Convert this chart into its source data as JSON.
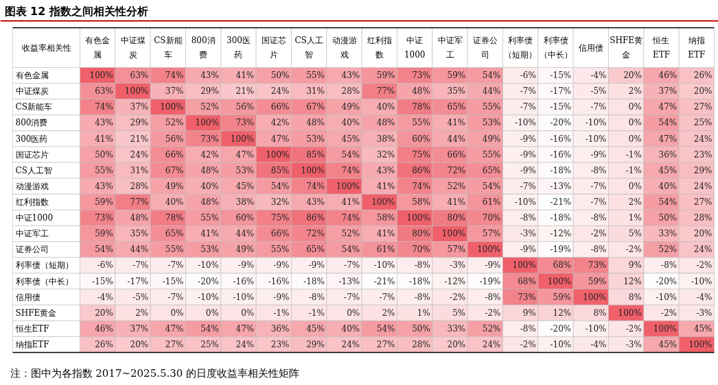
{
  "chart_data": {
    "type": "heatmap",
    "title": "图表 12  指数之间相关性分析",
    "ylabel": "收益率相关性",
    "color": "#f0606a",
    "annotations": [
      "注：图中为各指数 2017~2025.5.30 的日度收益率相关性矩阵"
    ],
    "categories": [
      "有色金属",
      "中证煤炭",
      "CS新能车",
      "800消费",
      "300医药",
      "国证芯片",
      "CS人工智",
      "动漫游戏",
      "红利指数",
      "中证1000",
      "中证军工",
      "证券公司",
      "利率债（短期）",
      "利率债（中长）",
      "信用债",
      "SHFE黄金",
      "恒生ETF",
      "纳指ETF"
    ],
    "y_categories": [
      "有色金属",
      "中证煤炭",
      "CS新能车",
      "800消费",
      "300医药",
      "国证芯片",
      "CS人工智",
      "动漫游戏",
      "红利指数",
      "中证1000",
      "中证军工",
      "证券公司",
      "利率债（短期）",
      "利率债（中长）",
      "信用债",
      "SHFE黄金",
      "恒生ETF",
      "纳指ETF"
    ],
    "cells": [
      [
        100,
        63,
        74,
        43,
        41,
        50,
        55,
        43,
        59,
        73,
        59,
        54,
        -6,
        -15,
        -4,
        20,
        46,
        26
      ],
      [
        63,
        100,
        37,
        29,
        21,
        24,
        31,
        28,
        77,
        48,
        35,
        44,
        -7,
        -17,
        -5,
        2,
        37,
        20
      ],
      [
        74,
        37,
        100,
        52,
        56,
        66,
        67,
        49,
        40,
        78,
        65,
        55,
        -7,
        -15,
        -7,
        0,
        47,
        27
      ],
      [
        43,
        29,
        52,
        100,
        73,
        42,
        48,
        40,
        48,
        55,
        41,
        53,
        -10,
        -20,
        -10,
        0,
        54,
        25
      ],
      [
        41,
        21,
        56,
        73,
        100,
        47,
        53,
        45,
        38,
        60,
        44,
        49,
        -9,
        -16,
        -10,
        0,
        47,
        24
      ],
      [
        50,
        24,
        66,
        42,
        47,
        100,
        85,
        54,
        32,
        75,
        66,
        55,
        -9,
        -16,
        -9,
        -1,
        36,
        23
      ],
      [
        55,
        31,
        67,
        48,
        53,
        85,
        100,
        74,
        43,
        86,
        72,
        65,
        -9,
        -18,
        -8,
        -1,
        45,
        29
      ],
      [
        43,
        28,
        49,
        40,
        45,
        54,
        74,
        100,
        41,
        74,
        52,
        54,
        -7,
        -13,
        -7,
        0,
        40,
        24
      ],
      [
        59,
        77,
        40,
        48,
        38,
        32,
        43,
        41,
        100,
        58,
        41,
        61,
        -10,
        -21,
        -7,
        2,
        54,
        27
      ],
      [
        73,
        48,
        78,
        55,
        60,
        75,
        86,
        74,
        58,
        100,
        80,
        70,
        -8,
        -18,
        -8,
        1,
        50,
        28
      ],
      [
        59,
        35,
        65,
        41,
        44,
        66,
        72,
        52,
        41,
        80,
        100,
        57,
        -3,
        -12,
        -2,
        5,
        33,
        20
      ],
      [
        54,
        44,
        55,
        53,
        49,
        55,
        65,
        54,
        61,
        70,
        57,
        100,
        -9,
        -19,
        -8,
        -2,
        52,
        24
      ],
      [
        -6,
        -7,
        -7,
        -10,
        -9,
        -9,
        -9,
        -7,
        -10,
        -8,
        -3,
        -9,
        100,
        68,
        73,
        9,
        -8,
        -2
      ],
      [
        -15,
        -17,
        -15,
        -20,
        -16,
        -16,
        -18,
        -13,
        -21,
        -18,
        -12,
        -19,
        68,
        100,
        59,
        12,
        -20,
        -10
      ],
      [
        -4,
        -5,
        -7,
        -10,
        -10,
        -9,
        -8,
        -7,
        -7,
        -8,
        -2,
        -8,
        73,
        59,
        100,
        8,
        -10,
        -4
      ],
      [
        20,
        2,
        0,
        0,
        0,
        -1,
        -1,
        0,
        2,
        1,
        5,
        -2,
        9,
        12,
        8,
        100,
        -2,
        -3
      ],
      [
        46,
        37,
        47,
        54,
        47,
        36,
        45,
        40,
        54,
        50,
        33,
        52,
        -8,
        -20,
        -10,
        -2,
        100,
        45
      ],
      [
        26,
        20,
        27,
        25,
        24,
        23,
        29,
        24,
        27,
        28,
        20,
        24,
        -2,
        -10,
        -4,
        -3,
        45,
        100
      ]
    ],
    "cell_labels": [
      [
        "100%",
        "63%",
        "74%",
        "43%",
        "41%",
        "50%",
        "55%",
        "43%",
        "59%",
        "73%",
        "59%",
        "54%",
        "-6%",
        "-15%",
        "-4%",
        "20%",
        "46%",
        "26%"
      ],
      [
        "63%",
        "100%",
        "37%",
        "29%",
        "21%",
        "24%",
        "31%",
        "28%",
        "77%",
        "48%",
        "35%",
        "44%",
        "-7%",
        "-17%",
        "-5%",
        "2%",
        "37%",
        "20%"
      ],
      [
        "74%",
        "37%",
        "100%",
        "52%",
        "56%",
        "66%",
        "67%",
        "49%",
        "40%",
        "78%",
        "65%",
        "55%",
        "-7%",
        "-15%",
        "-7%",
        "0%",
        "47%",
        "27%"
      ],
      [
        "43%",
        "29%",
        "52%",
        "100%",
        "73%",
        "42%",
        "48%",
        "40%",
        "48%",
        "55%",
        "41%",
        "53%",
        "-10%",
        "-20%",
        "-10%",
        "0%",
        "54%",
        "25%"
      ],
      [
        "41%",
        "21%",
        "56%",
        "73%",
        "100%",
        "47%",
        "53%",
        "45%",
        "38%",
        "60%",
        "44%",
        "49%",
        "-9%",
        "-16%",
        "-10%",
        "0%",
        "47%",
        "24%"
      ],
      [
        "50%",
        "24%",
        "66%",
        "42%",
        "47%",
        "100%",
        "85%",
        "54%",
        "32%",
        "75%",
        "66%",
        "55%",
        "-9%",
        "-16%",
        "-9%",
        "-1%",
        "36%",
        "23%"
      ],
      [
        "55%",
        "31%",
        "67%",
        "48%",
        "53%",
        "85%",
        "100%",
        "74%",
        "43%",
        "86%",
        "72%",
        "65%",
        "-9%",
        "-18%",
        "-8%",
        "-1%",
        "45%",
        "29%"
      ],
      [
        "43%",
        "28%",
        "49%",
        "40%",
        "45%",
        "54%",
        "74%",
        "100%",
        "41%",
        "74%",
        "52%",
        "54%",
        "-7%",
        "-13%",
        "-7%",
        "0%",
        "40%",
        "24%"
      ],
      [
        "59%",
        "77%",
        "40%",
        "48%",
        "38%",
        "32%",
        "43%",
        "41%",
        "100%",
        "58%",
        "41%",
        "61%",
        "-10%",
        "-21%",
        "-7%",
        "2%",
        "54%",
        "27%"
      ],
      [
        "73%",
        "48%",
        "78%",
        "55%",
        "60%",
        "75%",
        "86%",
        "74%",
        "58%",
        "100%",
        "80%",
        "70%",
        "-8%",
        "-18%",
        "-8%",
        "1%",
        "50%",
        "28%"
      ],
      [
        "59%",
        "35%",
        "65%",
        "41%",
        "44%",
        "66%",
        "72%",
        "52%",
        "41%",
        "80%",
        "100%",
        "57%",
        "-3%",
        "-12%",
        "-2%",
        "5%",
        "33%",
        "20%"
      ],
      [
        "54%",
        "44%",
        "55%",
        "53%",
        "49%",
        "55%",
        "65%",
        "54%",
        "61%",
        "70%",
        "57%",
        "100%",
        "-9%",
        "-19%",
        "-8%",
        "-2%",
        "52%",
        "24%"
      ],
      [
        "-6%",
        "-7%",
        "-7%",
        "-10%",
        "-9%",
        "-9%",
        "-9%",
        "-7%",
        "-10%",
        "-8%",
        "-3%",
        "-9%",
        "100%",
        "68%",
        "73%",
        "9%",
        "-8%",
        "-2%"
      ],
      [
        "-15%",
        "-17%",
        "-15%",
        "-20%",
        "-16%",
        "-16%",
        "-18%",
        "-13%",
        "-21%",
        "-18%",
        "-12%",
        "-19%",
        "68%",
        "100%",
        "59%",
        "12%",
        "-20%",
        "-10%"
      ],
      [
        "-4%",
        "-5%",
        "-7%",
        "-10%",
        "-10%",
        "-9%",
        "-8%",
        "-7%",
        "-7%",
        "-8%",
        "-2%",
        "-8%",
        "73%",
        "59%",
        "100%",
        "8%",
        "-10%",
        "-4%"
      ],
      [
        "20%",
        "2%",
        "0%",
        "0%",
        "0%",
        "-1%",
        "-1%",
        "0%",
        "2%",
        "1%",
        "5%",
        "-2%",
        "9%",
        "12%",
        "8%",
        "100%",
        "-2%",
        "-3%"
      ],
      [
        "46%",
        "37%",
        "47%",
        "54%",
        "47%",
        "36%",
        "45%",
        "40%",
        "54%",
        "50%",
        "33%",
        "52%",
        "-8%",
        "-20%",
        "-10%",
        "-2%",
        "100%",
        "45%"
      ],
      [
        "26%",
        "20%",
        "27%",
        "25%",
        "24%",
        "23%",
        "29%",
        "24%",
        "27%",
        "28%",
        "20%",
        "24%",
        "-2%",
        "-10%",
        "-4%",
        "-3%",
        "45%",
        "100%"
      ]
    ]
  }
}
